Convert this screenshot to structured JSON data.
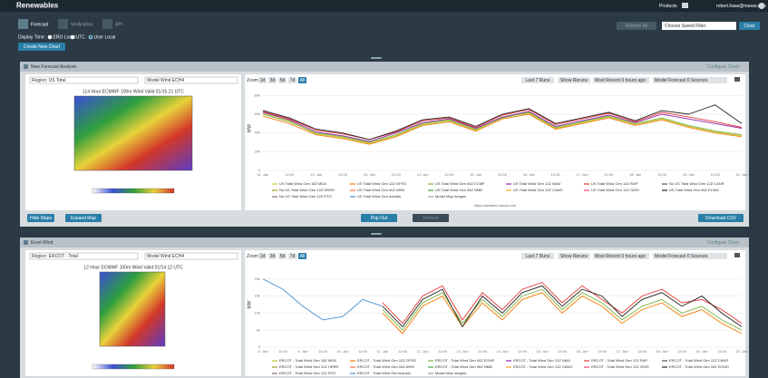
{
  "topbar": {
    "title": "Renewables",
    "products": "Products",
    "user": "robert.haas@maxar.com"
  },
  "tabs": [
    "Forecast",
    "Verification",
    "API"
  ],
  "controls": {
    "refresh": "Refresh All",
    "filter": "Choose Saved Filter",
    "clear": "Clear",
    "display_time": "Display Time:",
    "time_options": [
      "ERO Local",
      "UTC",
      "User Local"
    ],
    "create": "Create New Chart"
  },
  "panels": [
    {
      "title": "New Forecast Analysis",
      "configure": "Configure Chart",
      "region": "Region: US Total",
      "model": "Model Wind ECH4",
      "map_title": "114 Hour ECMWF 100m Wind Valid 01/15 21 UTC",
      "zoom_label": "Zoom",
      "zoom": [
        "1d",
        "3d",
        "5d",
        "7d",
        "All"
      ],
      "runs": "Last 7 Runs",
      "reruns": "Show Reruns",
      "recent": "Most Recent 0 hours ago",
      "sources": "Model Forecast 0 Sources",
      "source": "https://weather.maxar.com",
      "buttons": [
        "Hide Maps",
        "Expand Map",
        "Pop Out",
        "Refresh",
        "Download CSV"
      ]
    },
    {
      "title": "Ercot Wind",
      "configure": "Configure Chart",
      "region": "Region: ERCOT - Total",
      "model": "Model Wind ECH4",
      "map_title": "12 Hour ECMWF 100m Wind Valid 01/14 12 UTC",
      "zoom_label": "Zoom",
      "zoom": [
        "1d",
        "3d",
        "5d",
        "7d",
        "All"
      ],
      "runs": "Last 7 Runs",
      "reruns": "Show Reruns",
      "recent": "Most Recent 0 hours ago",
      "sources": "Model Forecast 0 Sources"
    }
  ],
  "chart_data": [
    {
      "type": "line",
      "y_label": "MW",
      "categories": [
        "11. Jan",
        "12:00",
        "12. Jan",
        "12:00",
        "13. Jan",
        "12:00",
        "14. Jan",
        "12:00",
        "15. Jan",
        "12:00",
        "16. Jan",
        "12:00",
        "17. Jan",
        "12:00",
        "18. Jan",
        "12:00",
        "19. Jan",
        "12:00",
        "20. Jan"
      ],
      "ylim": [
        0,
        90000
      ],
      "yticks": [
        0,
        {
          "value": 20000,
          "label": "20k"
        },
        {
          "value": 40000,
          "label": "40k"
        },
        {
          "value": 60000,
          "label": "60k"
        },
        {
          "value": 80000,
          "label": "80k"
        }
      ],
      "grid": true,
      "series": [
        {
          "name": "US Total Wind Gen 18Z MDA",
          "color": "#c0ca33",
          "values": [
            61000,
            53000,
            39000,
            35000,
            29000,
            37000,
            49000,
            53000,
            43000,
            57000,
            61000,
            45000,
            51000,
            57000,
            49000,
            55000,
            47000,
            41000,
            37000
          ]
        },
        {
          "name": "US Total Wind Gen 12Z GFSO",
          "color": "#f57c00",
          "values": [
            58000,
            50000,
            38000,
            34000,
            28000,
            36000,
            48000,
            52000,
            42000,
            55000,
            60000,
            44000,
            50000,
            56000,
            48000,
            54000,
            46000,
            40000,
            36000
          ]
        },
        {
          "name": "US Total Wind Gen 00Z ECMF",
          "color": "#7cb342",
          "values": [
            60000,
            52000,
            40000,
            36000,
            30000,
            38000,
            50000,
            54000,
            44000,
            56000,
            62000,
            46000,
            52000,
            58000,
            50000,
            56000,
            48000,
            42000,
            38000
          ]
        },
        {
          "name": "US Total Wind Gen 12Z NAM",
          "color": "#8e24aa",
          "values": [
            62000,
            54000,
            41000,
            37000,
            31000,
            40000,
            51000,
            55000,
            45000,
            57000,
            63000,
            47000,
            53000,
            59000,
            51000,
            60000,
            55000,
            50000,
            45000
          ]
        },
        {
          "name": "US Total Wind Gen 12Z RAP",
          "color": "#e53935",
          "values": [
            63000,
            55000,
            43000,
            39000,
            33000,
            41000,
            53000,
            56000,
            46000,
            59000,
            65000,
            49000,
            55000,
            61000,
            52000,
            62000,
            57000,
            52000,
            46000
          ]
        },
        {
          "name": "No US Total Wind Gen 12Z CANR",
          "color": "#455a64"
        },
        {
          "name": "No US Total Wind Gen 12Z HRRR",
          "color": "#9e9d24"
        },
        {
          "name": "US Total Wind Gen 00Z ARW",
          "color": "#ff7043"
        },
        {
          "name": "US Total Wind Gen 06Z NMB",
          "color": "#43a047"
        },
        {
          "name": "US Total Wind Gen 12Z CANG",
          "color": "#ffa726"
        },
        {
          "name": "US Total Wind Gen 12Z GDIS",
          "color": "#ec407a"
        },
        {
          "name": "US Total Wind Gen 06Z ECMO",
          "color": "#222222",
          "values": [
            64000,
            56000,
            44000,
            40000,
            33000,
            42000,
            54000,
            57000,
            47000,
            60000,
            66000,
            50000,
            56000,
            62000,
            53000,
            64000,
            60000,
            70000,
            50000
          ]
        },
        {
          "name": "No US Total Wind Gen 12Z RTO",
          "color": "#8d6e63"
        },
        {
          "name": "US Total Wind Gen Actuals",
          "color": "#4a90d9"
        },
        {
          "name": "Model Map Images",
          "color": "#90a4ae"
        }
      ]
    },
    {
      "type": "line",
      "y_label": "MW",
      "categories": [
        "8. Jan",
        "12:00",
        "9. Jan",
        "12:00",
        "10. Jan",
        "12:00",
        "11. Jan",
        "12:00",
        "12. Jan",
        "12:00",
        "13. Jan",
        "12:00",
        "14. Jan",
        "12:00",
        "15. Jan",
        "12:00",
        "16. Jan",
        "12:00",
        "17. Jan",
        "12:00",
        "18. Jan",
        "12:00",
        "19. Jan",
        "12:00",
        "20. Jan"
      ],
      "ylim": [
        0,
        25000
      ],
      "yticks": [
        0,
        {
          "value": 5000,
          "label": "5k"
        },
        {
          "value": 10000,
          "label": "10k"
        },
        {
          "value": 15000,
          "label": "15k"
        },
        {
          "value": 20000,
          "label": "20k"
        }
      ],
      "grid": true,
      "series": [
        {
          "name": "ERCOT - Total Wind Gen 18Z MDA",
          "color": "#c0ca33"
        },
        {
          "name": "ERCOT - Total Wind Gen 12Z GFSO",
          "color": "#f57c00",
          "values": [
            null,
            null,
            null,
            null,
            null,
            null,
            10000,
            4000,
            12000,
            15000,
            6000,
            13000,
            8000,
            14000,
            16000,
            10000,
            15000,
            12000,
            7000,
            11000,
            13000,
            9000,
            11000,
            7000,
            4000
          ]
        },
        {
          "name": "ERCOT - Total Wind Gen 00Z ECMF",
          "color": "#7cb342",
          "values": [
            null,
            null,
            null,
            null,
            null,
            null,
            11000,
            5000,
            13000,
            16000,
            7000,
            14000,
            9000,
            15000,
            17000,
            11000,
            16000,
            13000,
            8000,
            12000,
            14000,
            10000,
            12000,
            8000,
            5000
          ]
        },
        {
          "name": "ERCOT - Total Wind Gen 12Z NAM",
          "color": "#8e24aa"
        },
        {
          "name": "ERCOT - Total Wind Gen 12Z RAP",
          "color": "#e53935",
          "values": [
            null,
            null,
            null,
            null,
            null,
            null,
            13000,
            7000,
            15000,
            18000,
            8000,
            16000,
            11000,
            17000,
            19000,
            13000,
            18000,
            14000,
            10000,
            15000,
            17000,
            13000,
            14000,
            11000,
            7000
          ]
        },
        {
          "name": "ERCOT - Total Wind Gen 12Z CANR",
          "color": "#455a64"
        },
        {
          "name": "ERCOT - Total Wind Gen 12Z HRRR",
          "color": "#9e9d24"
        },
        {
          "name": "ERCOT - Total Wind Gen 00Z ARW",
          "color": "#ff7043"
        },
        {
          "name": "ERCOT - Total Wind Gen 06Z NMB",
          "color": "#43a047"
        },
        {
          "name": "ERCOT - Total Wind Gen 12Z CANG",
          "color": "#ffa726"
        },
        {
          "name": "ERCOT - Total Wind Gen 12Z GDIS",
          "color": "#ec407a"
        },
        {
          "name": "ERCOT - Total Wind Gen 06Z ECMO",
          "color": "#222222",
          "values": [
            null,
            null,
            null,
            null,
            null,
            null,
            12000,
            6000,
            14000,
            17000,
            6000,
            15000,
            10000,
            16000,
            18000,
            12000,
            17000,
            15000,
            9000,
            14000,
            16000,
            12000,
            15000,
            10000,
            6000
          ]
        },
        {
          "name": "ERCOT - Total Wind Gen 12Z RTO",
          "color": "#8d6e63"
        },
        {
          "name": "ERCOT - Total Wind Gen Actuals",
          "color": "#4a90d9",
          "values": [
            20000,
            17000,
            12000,
            8000,
            9000,
            14000,
            12000,
            null,
            null,
            null,
            null,
            null,
            null,
            null,
            null,
            null,
            null,
            null,
            null,
            null,
            null,
            null,
            null,
            null,
            null
          ]
        },
        {
          "name": "Model Map Images",
          "color": "#90a4ae"
        }
      ]
    }
  ]
}
